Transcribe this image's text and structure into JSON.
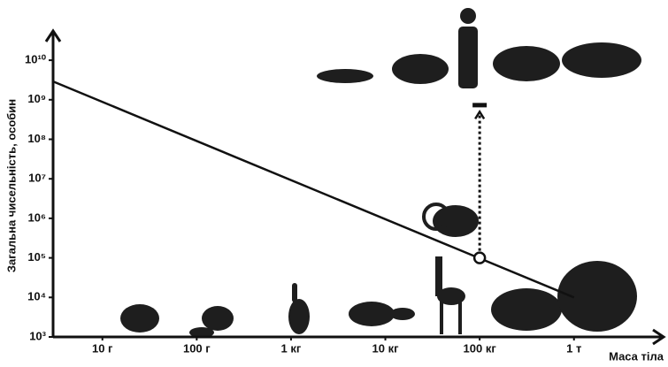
{
  "chart_data": {
    "type": "line",
    "ylabel": "Загальна  чисельність, особин",
    "xlabel": "Маса тіла",
    "log_x": true,
    "log_y": true,
    "xlim": [
      3,
      8000000
    ],
    "ylim": [
      1000,
      55000000000
    ],
    "xticks": [
      {
        "value": 10,
        "label": "10 г"
      },
      {
        "value": 100,
        "label": "100 г"
      },
      {
        "value": 1000,
        "label": "1 кг"
      },
      {
        "value": 10000,
        "label": "10 кг"
      },
      {
        "value": 100000,
        "label": "100 кг"
      },
      {
        "value": 1000000,
        "label": "1 т"
      }
    ],
    "yticks": [
      {
        "value": 1000,
        "label": "10³"
      },
      {
        "value": 10000,
        "label": "10⁴"
      },
      {
        "value": 100000,
        "label": "10⁵"
      },
      {
        "value": 1000000,
        "label": "10⁶"
      },
      {
        "value": 10000000,
        "label": "10⁷"
      },
      {
        "value": 100000000,
        "label": "10⁸"
      },
      {
        "value": 1000000000,
        "label": "10⁹"
      },
      {
        "value": 10000000000,
        "label": "10¹⁰"
      }
    ],
    "x": [
      3,
      1000000
    ],
    "series": [
      {
        "color": "#111111",
        "values": [
          2900000000,
          10000
        ]
      }
    ],
    "markers": [
      {
        "x": 100000,
        "y": 100000
      },
      {
        "x": 100000,
        "y": 750000000
      }
    ]
  }
}
